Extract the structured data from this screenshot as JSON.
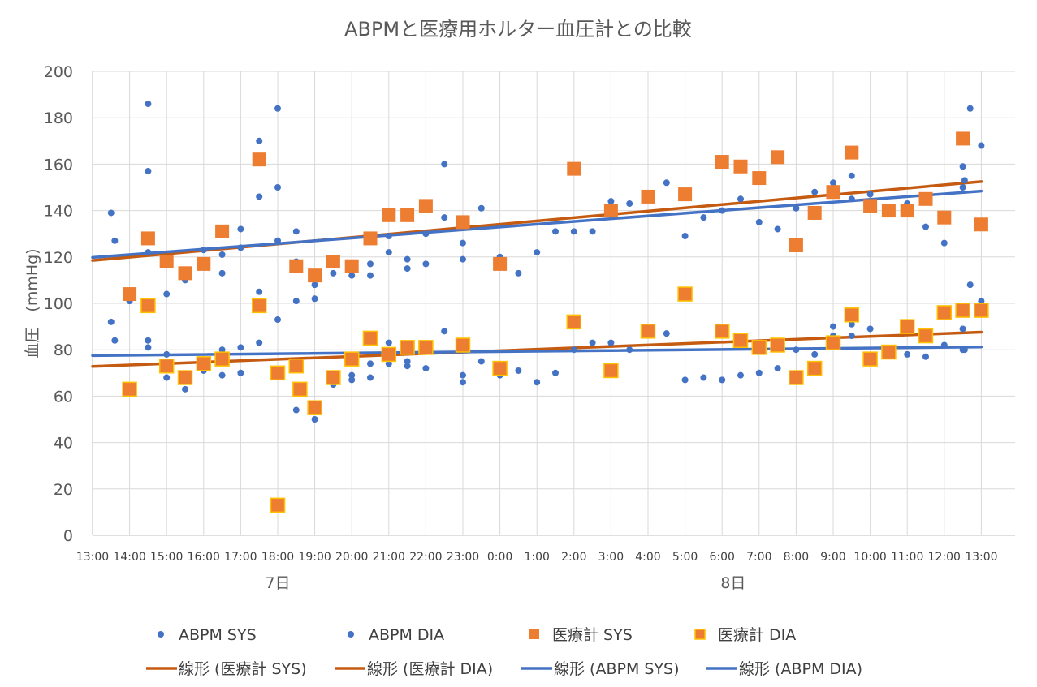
{
  "chart_data": {
    "type": "scatter",
    "title": "ABPMと医療用ホルター血圧計との比較",
    "ylabel": "血圧　(mmHg)",
    "xlabel": "",
    "ylim": [
      0,
      200
    ],
    "yticks": [
      0,
      20,
      40,
      60,
      80,
      100,
      120,
      140,
      160,
      180,
      200
    ],
    "x_unit": "hours since 13:00 on day 7",
    "xlim": [
      0,
      24.9
    ],
    "xticks": [
      {
        "x": 0,
        "label": "13:00"
      },
      {
        "x": 1,
        "label": "14:00"
      },
      {
        "x": 2,
        "label": "15:00"
      },
      {
        "x": 3,
        "label": "16:00"
      },
      {
        "x": 4,
        "label": "17:00"
      },
      {
        "x": 5,
        "label": "18:00"
      },
      {
        "x": 6,
        "label": "19:00"
      },
      {
        "x": 7,
        "label": "20:00"
      },
      {
        "x": 8,
        "label": "21:00"
      },
      {
        "x": 9,
        "label": "22:00"
      },
      {
        "x": 10,
        "label": "23:00"
      },
      {
        "x": 11,
        "label": "0:00"
      },
      {
        "x": 12,
        "label": "1:00"
      },
      {
        "x": 13,
        "label": "2:00"
      },
      {
        "x": 14,
        "label": "3:00"
      },
      {
        "x": 15,
        "label": "4:00"
      },
      {
        "x": 16,
        "label": "5:00"
      },
      {
        "x": 17,
        "label": "6:00"
      },
      {
        "x": 18,
        "label": "7:00"
      },
      {
        "x": 19,
        "label": "8:00"
      },
      {
        "x": 20,
        "label": "9:00"
      },
      {
        "x": 21,
        "label": "10:00"
      },
      {
        "x": 22,
        "label": "11:00"
      },
      {
        "x": 23,
        "label": "12:00"
      },
      {
        "x": 24,
        "label": "13:00"
      }
    ],
    "day_labels": [
      {
        "x": 5,
        "label": "7日"
      },
      {
        "x": 17.3,
        "label": "8日"
      }
    ],
    "grid": true,
    "legend_position": "bottom",
    "series": [
      {
        "name": "ABPM SYS",
        "marker": "circle",
        "color": "#4472C4",
        "points": [
          [
            0.5,
            139
          ],
          [
            0.6,
            127
          ],
          [
            1.5,
            186
          ],
          [
            1.5,
            157
          ],
          [
            1.5,
            122
          ],
          [
            2.0,
            104
          ],
          [
            2.5,
            110
          ],
          [
            3.0,
            123
          ],
          [
            3.5,
            121
          ],
          [
            3.5,
            113
          ],
          [
            4.0,
            124
          ],
          [
            4.0,
            132
          ],
          [
            4.5,
            170
          ],
          [
            4.5,
            146
          ],
          [
            4.5,
            105
          ],
          [
            5.0,
            184
          ],
          [
            5.0,
            127
          ],
          [
            5.0,
            150
          ],
          [
            5.5,
            131
          ],
          [
            5.5,
            118
          ],
          [
            6.0,
            108
          ],
          [
            6.0,
            102
          ],
          [
            6.5,
            113
          ],
          [
            7.0,
            112
          ],
          [
            7.5,
            117
          ],
          [
            7.5,
            112
          ],
          [
            8.0,
            129
          ],
          [
            8.0,
            122
          ],
          [
            8.5,
            115
          ],
          [
            8.5,
            119
          ],
          [
            9.0,
            117
          ],
          [
            9.0,
            130
          ],
          [
            9.5,
            160
          ],
          [
            9.5,
            137
          ],
          [
            10.0,
            119
          ],
          [
            10.0,
            126
          ],
          [
            10.5,
            141
          ],
          [
            11.0,
            120
          ],
          [
            11.5,
            113
          ],
          [
            12.0,
            122
          ],
          [
            12.5,
            131
          ],
          [
            13.0,
            131
          ],
          [
            13.5,
            131
          ],
          [
            14.0,
            144
          ],
          [
            14.5,
            143
          ],
          [
            15.5,
            152
          ],
          [
            16.0,
            129
          ],
          [
            16.5,
            137
          ],
          [
            17.0,
            140
          ],
          [
            17.5,
            145
          ],
          [
            18.0,
            135
          ],
          [
            18.5,
            132
          ],
          [
            19.0,
            141
          ],
          [
            19.5,
            148
          ],
          [
            20.0,
            152
          ],
          [
            20.5,
            145
          ],
          [
            20.5,
            155
          ],
          [
            21.0,
            147
          ],
          [
            22.0,
            143
          ],
          [
            22.5,
            133
          ],
          [
            23.0,
            126
          ],
          [
            23.5,
            150
          ],
          [
            23.5,
            159
          ],
          [
            23.55,
            153
          ],
          [
            23.7,
            184
          ],
          [
            24.0,
            168
          ]
        ]
      },
      {
        "name": "ABPM DIA",
        "marker": "circle",
        "color": "#4472C4",
        "points": [
          [
            0.5,
            92
          ],
          [
            0.6,
            84
          ],
          [
            1.0,
            101
          ],
          [
            1.5,
            81
          ],
          [
            1.5,
            84
          ],
          [
            2.0,
            78
          ],
          [
            2.0,
            68
          ],
          [
            2.5,
            63
          ],
          [
            3.0,
            71
          ],
          [
            3.5,
            80
          ],
          [
            3.5,
            69
          ],
          [
            4.0,
            81
          ],
          [
            4.0,
            70
          ],
          [
            4.5,
            83
          ],
          [
            5.0,
            93
          ],
          [
            5.5,
            54
          ],
          [
            5.5,
            61
          ],
          [
            5.5,
            101
          ],
          [
            6.0,
            50
          ],
          [
            6.5,
            65
          ],
          [
            7.0,
            69
          ],
          [
            7.0,
            67
          ],
          [
            7.5,
            74
          ],
          [
            7.5,
            68
          ],
          [
            8.0,
            83
          ],
          [
            8.0,
            74
          ],
          [
            8.5,
            75
          ],
          [
            8.5,
            73
          ],
          [
            9.0,
            72
          ],
          [
            9.5,
            88
          ],
          [
            10.0,
            69
          ],
          [
            10.0,
            66
          ],
          [
            10.5,
            75
          ],
          [
            11.0,
            69
          ],
          [
            11.5,
            71
          ],
          [
            12.0,
            66
          ],
          [
            12.5,
            70
          ],
          [
            13.0,
            80
          ],
          [
            13.5,
            83
          ],
          [
            14.0,
            83
          ],
          [
            14.5,
            80
          ],
          [
            15.5,
            87
          ],
          [
            16.0,
            67
          ],
          [
            16.5,
            68
          ],
          [
            17.0,
            67
          ],
          [
            17.5,
            69
          ],
          [
            18.0,
            70
          ],
          [
            18.5,
            72
          ],
          [
            19.0,
            80
          ],
          [
            19.5,
            78
          ],
          [
            20.0,
            90
          ],
          [
            20.0,
            86
          ],
          [
            20.5,
            86
          ],
          [
            20.5,
            91
          ],
          [
            21.0,
            89
          ],
          [
            22.0,
            78
          ],
          [
            22.5,
            77
          ],
          [
            23.0,
            82
          ],
          [
            23.5,
            89
          ],
          [
            23.5,
            80
          ],
          [
            23.55,
            80
          ],
          [
            23.7,
            108
          ],
          [
            24.0,
            101
          ]
        ]
      },
      {
        "name": "医療計 SYS",
        "marker": "square",
        "color": "#ED7D31",
        "border": "none",
        "points": [
          [
            1.0,
            104
          ],
          [
            1.5,
            128
          ],
          [
            2.0,
            118
          ],
          [
            2.5,
            113
          ],
          [
            3.0,
            117
          ],
          [
            3.5,
            131
          ],
          [
            4.5,
            162
          ],
          [
            5.5,
            116
          ],
          [
            6.0,
            112
          ],
          [
            6.5,
            118
          ],
          [
            7.0,
            116
          ],
          [
            7.5,
            128
          ],
          [
            8.0,
            138
          ],
          [
            8.5,
            138
          ],
          [
            9.0,
            142
          ],
          [
            10.0,
            135
          ],
          [
            11.0,
            117
          ],
          [
            13.0,
            158
          ],
          [
            14.0,
            140
          ],
          [
            15.0,
            146
          ],
          [
            16.0,
            147
          ],
          [
            17.0,
            161
          ],
          [
            17.5,
            159
          ],
          [
            18.0,
            154
          ],
          [
            18.5,
            163
          ],
          [
            19.0,
            125
          ],
          [
            19.5,
            139
          ],
          [
            20.0,
            148
          ],
          [
            20.5,
            165
          ],
          [
            21.0,
            142
          ],
          [
            21.5,
            140
          ],
          [
            22.0,
            140
          ],
          [
            22.5,
            145
          ],
          [
            23.0,
            137
          ],
          [
            23.5,
            171
          ],
          [
            24.0,
            134
          ]
        ]
      },
      {
        "name": "医療計 DIA",
        "marker": "square",
        "color": "#ED7D31",
        "border": "#FFC000",
        "points": [
          [
            1.0,
            63
          ],
          [
            1.5,
            99
          ],
          [
            2.0,
            73
          ],
          [
            2.5,
            68
          ],
          [
            3.0,
            74
          ],
          [
            3.5,
            76
          ],
          [
            4.5,
            99
          ],
          [
            5.0,
            13
          ],
          [
            5.0,
            70
          ],
          [
            5.5,
            73
          ],
          [
            5.6,
            63
          ],
          [
            6.0,
            55
          ],
          [
            6.5,
            68
          ],
          [
            7.0,
            76
          ],
          [
            7.5,
            85
          ],
          [
            8.0,
            78
          ],
          [
            8.5,
            81
          ],
          [
            9.0,
            81
          ],
          [
            10.0,
            82
          ],
          [
            11.0,
            72
          ],
          [
            13.0,
            92
          ],
          [
            14.0,
            71
          ],
          [
            15.0,
            88
          ],
          [
            16.0,
            104
          ],
          [
            17.0,
            88
          ],
          [
            17.5,
            84
          ],
          [
            18.0,
            81
          ],
          [
            18.5,
            82
          ],
          [
            19.0,
            68
          ],
          [
            19.5,
            72
          ],
          [
            20.0,
            83
          ],
          [
            20.5,
            95
          ],
          [
            21.0,
            76
          ],
          [
            21.5,
            79
          ],
          [
            22.0,
            90
          ],
          [
            22.5,
            86
          ],
          [
            23.0,
            96
          ],
          [
            23.5,
            97
          ],
          [
            24.0,
            97
          ]
        ]
      }
    ],
    "trendlines": [
      {
        "name": "線形 (医療計 SYS)",
        "color": "#C55A11",
        "x": [
          0,
          24
        ],
        "y": [
          118.5,
          152.5
        ]
      },
      {
        "name": "線形 (医療計 DIA)",
        "color": "#C55A11",
        "x": [
          0,
          24
        ],
        "y": [
          72.8,
          87.6
        ]
      },
      {
        "name": "線形 (ABPM SYS)",
        "color": "#4472C4",
        "x": [
          0,
          24
        ],
        "y": [
          119.8,
          148.4
        ]
      },
      {
        "name": "線形 (ABPM DIA)",
        "color": "#4472C4",
        "x": [
          0,
          24
        ],
        "y": [
          77.5,
          81.2
        ]
      }
    ],
    "legend": [
      {
        "label": "ABPM SYS",
        "kind": "circle",
        "color": "#4472C4"
      },
      {
        "label": "ABPM DIA",
        "kind": "circle",
        "color": "#4472C4"
      },
      {
        "label": "医療計 SYS",
        "kind": "square",
        "color": "#ED7D31",
        "border": "none"
      },
      {
        "label": "医療計 DIA",
        "kind": "square",
        "color": "#ED7D31",
        "border": "#FFC000"
      },
      {
        "label": "線形 (医療計 SYS)",
        "kind": "line",
        "color": "#C55A11"
      },
      {
        "label": "線形 (医療計 DIA)",
        "kind": "line",
        "color": "#C55A11"
      },
      {
        "label": "線形 (ABPM SYS)",
        "kind": "line",
        "color": "#4472C4"
      },
      {
        "label": "線形 (ABPM DIA)",
        "kind": "line",
        "color": "#4472C4"
      }
    ]
  }
}
